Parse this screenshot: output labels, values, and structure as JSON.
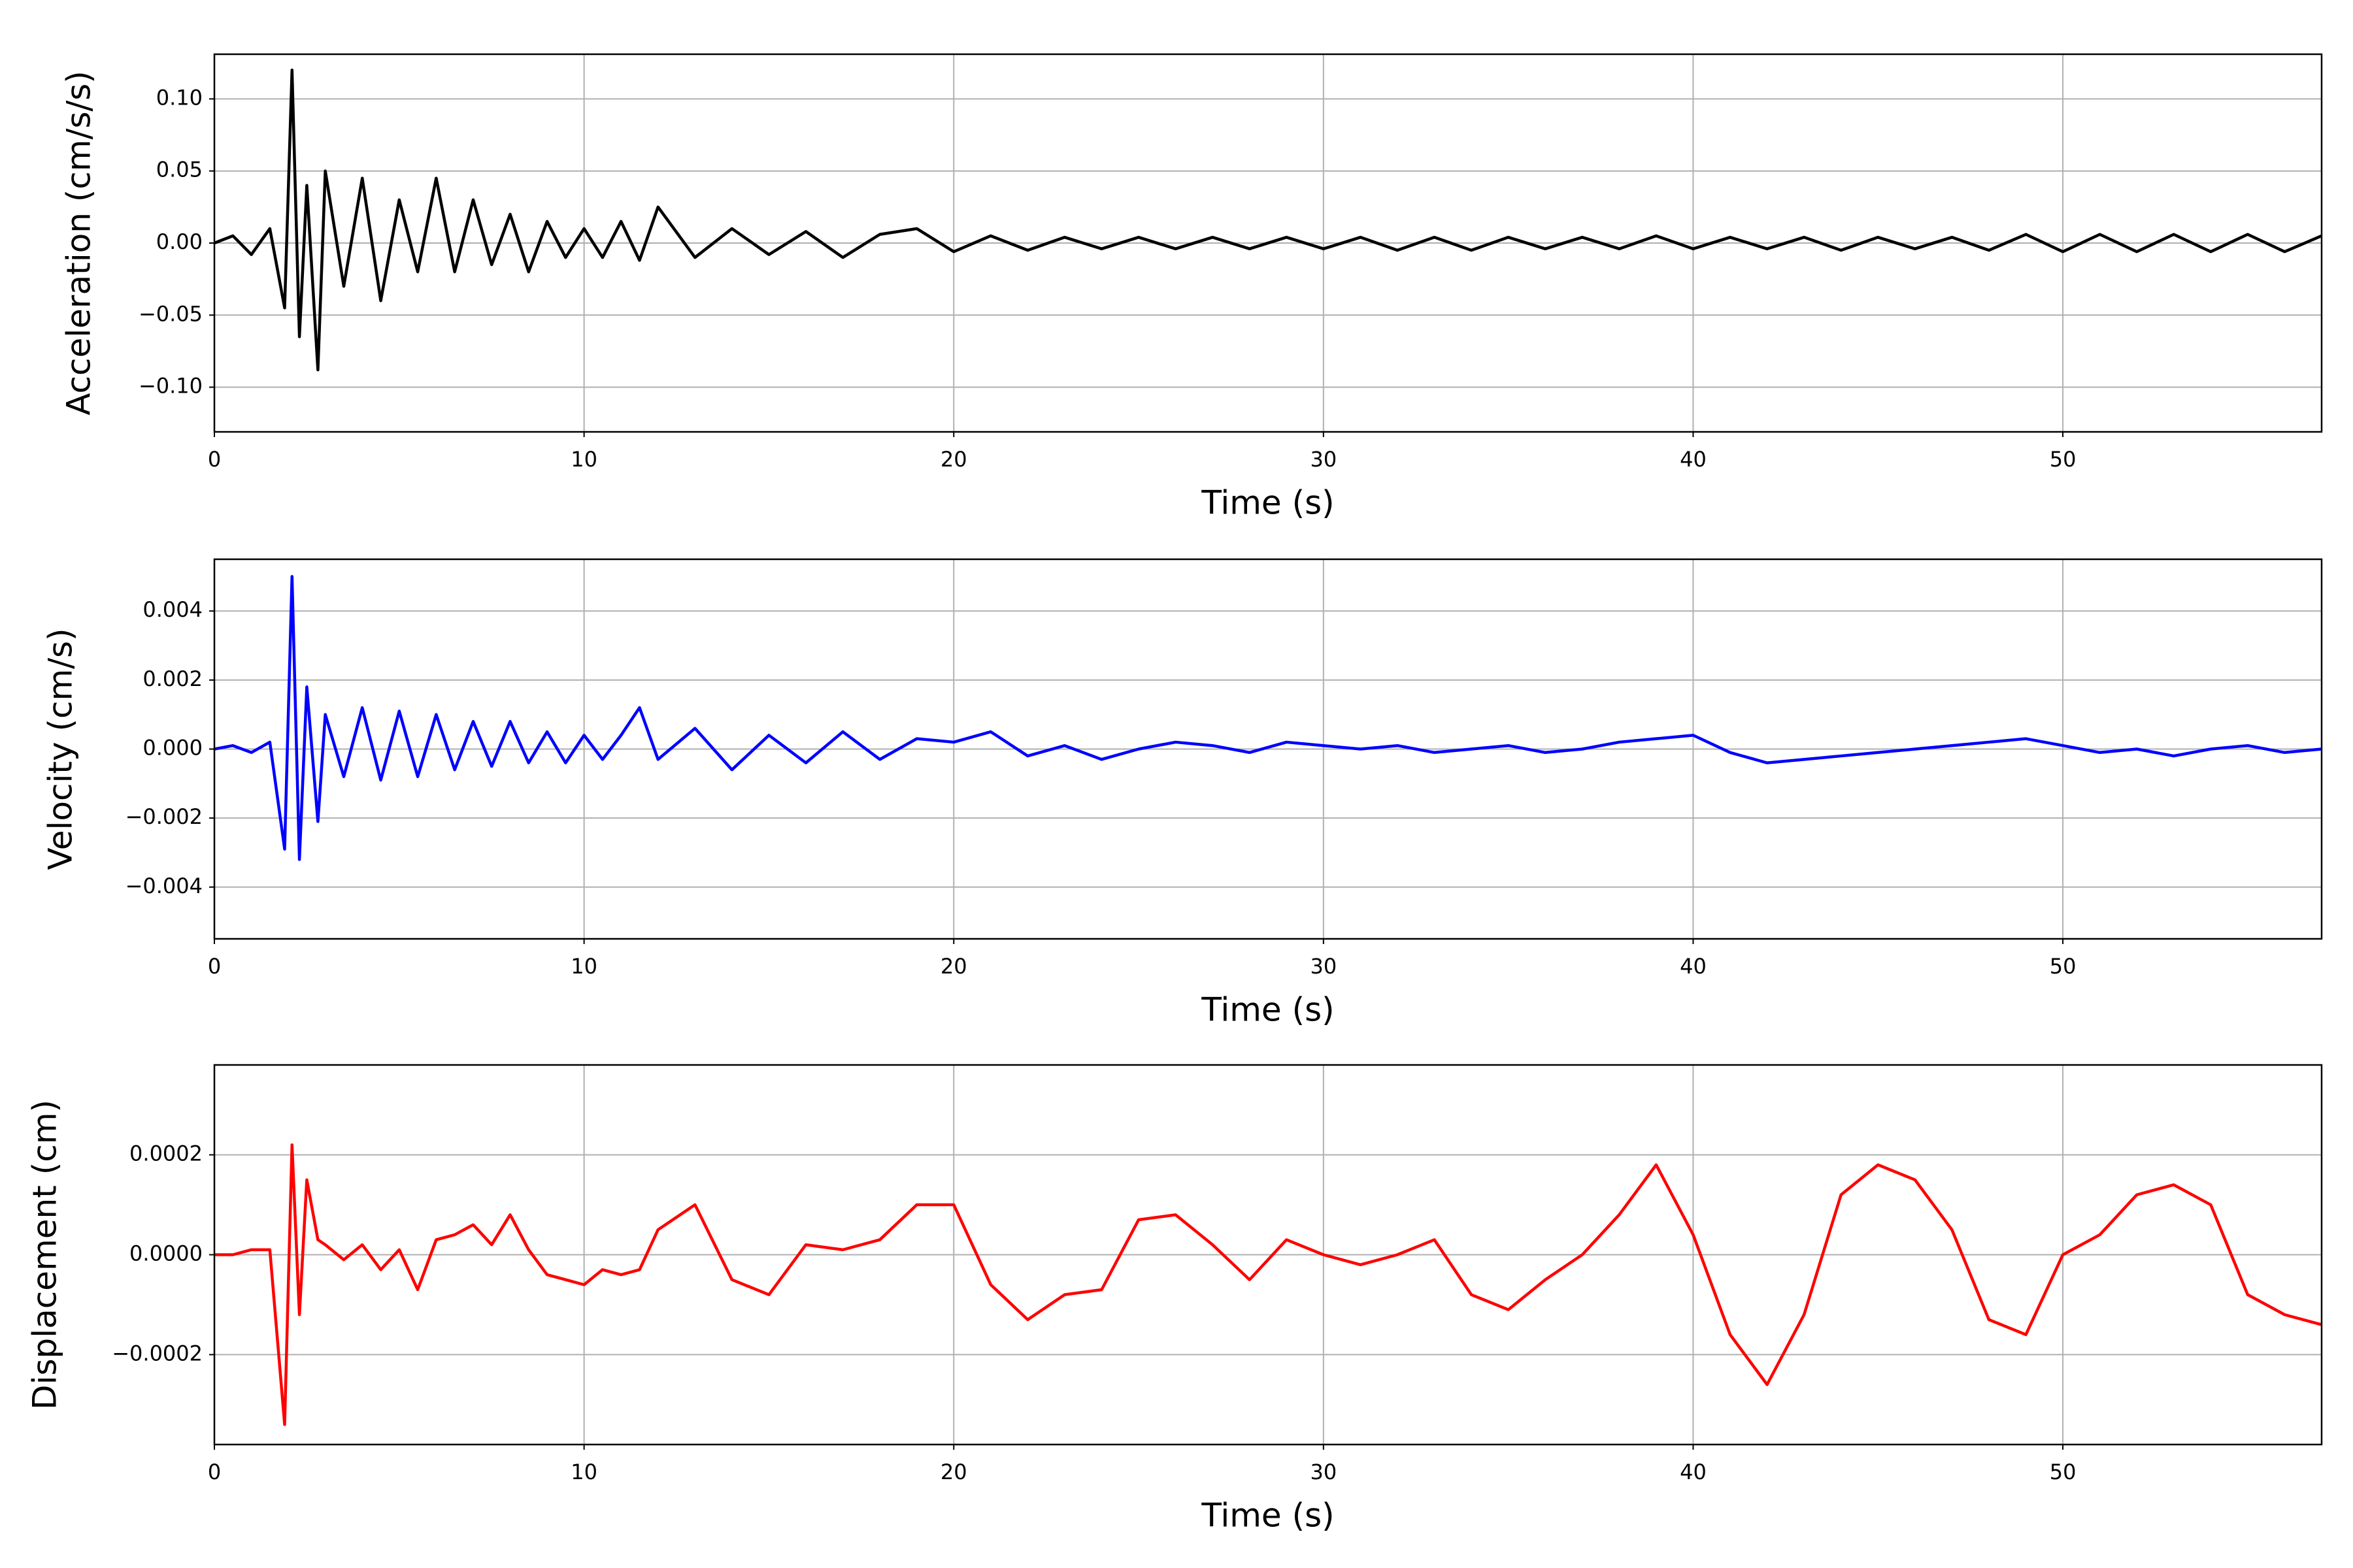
{
  "chart_data": [
    {
      "type": "line",
      "xlabel": "Time (s)",
      "ylabel": "Acceleration (cm/s/s)",
      "x": [
        0,
        0.5,
        1,
        1.5,
        1.9,
        2.1,
        2.3,
        2.5,
        2.8,
        3,
        3.5,
        4,
        4.5,
        5,
        5.5,
        6,
        6.5,
        7,
        7.5,
        8,
        8.5,
        9,
        9.5,
        10,
        10.5,
        11,
        11.5,
        12,
        13,
        14,
        15,
        16,
        17,
        18,
        19,
        20,
        21,
        22,
        23,
        24,
        25,
        26,
        27,
        28,
        29,
        30,
        31,
        32,
        33,
        34,
        35,
        36,
        37,
        38,
        39,
        40,
        41,
        42,
        43,
        44,
        45,
        46,
        47,
        48,
        49,
        50,
        51,
        52,
        53,
        54,
        55,
        56,
        57
      ],
      "series": [
        {
          "color": "#000000",
          "values": [
            0,
            0.005,
            -0.008,
            0.01,
            -0.045,
            0.12,
            -0.065,
            0.04,
            -0.088,
            0.05,
            -0.03,
            0.045,
            -0.04,
            0.03,
            -0.02,
            0.045,
            -0.02,
            0.03,
            -0.015,
            0.02,
            -0.02,
            0.015,
            -0.01,
            0.01,
            -0.01,
            0.015,
            -0.012,
            0.025,
            -0.01,
            0.01,
            -0.008,
            0.008,
            -0.01,
            0.006,
            0.01,
            -0.006,
            0.005,
            -0.005,
            0.004,
            -0.004,
            0.004,
            -0.004,
            0.004,
            -0.004,
            0.004,
            -0.004,
            0.004,
            -0.005,
            0.004,
            -0.005,
            0.004,
            -0.004,
            0.004,
            -0.004,
            0.005,
            -0.004,
            0.004,
            -0.004,
            0.004,
            -0.005,
            0.004,
            -0.004,
            0.004,
            -0.005,
            0.006,
            -0.006,
            0.006,
            -0.006,
            0.006,
            -0.006,
            0.006,
            -0.006,
            0.005
          ]
        }
      ],
      "xlim": [
        0,
        57
      ],
      "ylim": [
        -0.131,
        0.131
      ],
      "xticks": [
        0,
        10,
        20,
        30,
        40,
        50
      ],
      "yticks": [
        {
          "value": -0.1,
          "label": "−0.10"
        },
        {
          "value": -0.05,
          "label": "−0.05"
        },
        {
          "value": 0,
          "label": "0.00"
        },
        {
          "value": 0.05,
          "label": "0.05"
        },
        {
          "value": 0.1,
          "label": "0.10"
        }
      ],
      "grid": true
    },
    {
      "type": "line",
      "xlabel": "Time (s)",
      "ylabel": "Velocity (cm/s)",
      "x": [
        0,
        0.5,
        1,
        1.5,
        1.9,
        2.1,
        2.3,
        2.5,
        2.8,
        3,
        3.5,
        4,
        4.5,
        5,
        5.5,
        6,
        6.5,
        7,
        7.5,
        8,
        8.5,
        9,
        9.5,
        10,
        10.5,
        11,
        11.5,
        12,
        13,
        14,
        15,
        16,
        17,
        18,
        19,
        20,
        21,
        22,
        23,
        24,
        25,
        26,
        27,
        28,
        29,
        30,
        31,
        32,
        33,
        34,
        35,
        36,
        37,
        38,
        39,
        40,
        41,
        42,
        43,
        44,
        45,
        46,
        47,
        48,
        49,
        50,
        51,
        52,
        53,
        54,
        55,
        56,
        57
      ],
      "series": [
        {
          "color": "#0000ff",
          "values": [
            0,
            0.0001,
            -0.0001,
            0.0002,
            -0.0029,
            0.005,
            -0.0032,
            0.0018,
            -0.0021,
            0.001,
            -0.0008,
            0.0012,
            -0.0009,
            0.0011,
            -0.0008,
            0.001,
            -0.0006,
            0.0008,
            -0.0005,
            0.0008,
            -0.0004,
            0.0005,
            -0.0004,
            0.0004,
            -0.0003,
            0.0004,
            0.0012,
            -0.0003,
            0.0006,
            -0.0006,
            0.0004,
            -0.0004,
            0.0005,
            -0.0003,
            0.0003,
            0.0002,
            0.0005,
            -0.0002,
            0.0001,
            -0.0003,
            0,
            0.0002,
            0.0001,
            -0.0001,
            0.0002,
            0.0001,
            0,
            0.0001,
            -0.0001,
            0,
            0.0001,
            -0.0001,
            0,
            0.0002,
            0.0003,
            0.0004,
            -0.0001,
            -0.0004,
            -0.0003,
            -0.0002,
            -0.0001,
            0,
            0.0001,
            0.0002,
            0.0003,
            0.0001,
            -0.0001,
            0,
            -0.0002,
            0,
            0.0001,
            -0.0001,
            0
          ]
        }
      ],
      "xlim": [
        0,
        57
      ],
      "ylim": [
        -0.0055,
        0.0055
      ],
      "xticks": [
        0,
        10,
        20,
        30,
        40,
        50
      ],
      "yticks": [
        {
          "value": -0.004,
          "label": "−0.004"
        },
        {
          "value": -0.002,
          "label": "−0.002"
        },
        {
          "value": 0,
          "label": "0.000"
        },
        0.002,
        0.004
      ],
      "grid": true
    },
    {
      "type": "line",
      "xlabel": "Time (s)",
      "ylabel": "Displacement (cm)",
      "x": [
        0,
        0.5,
        1,
        1.5,
        1.9,
        2.1,
        2.3,
        2.5,
        2.8,
        3,
        3.5,
        4,
        4.5,
        5,
        5.5,
        6,
        6.5,
        7,
        7.5,
        8,
        8.5,
        9,
        9.5,
        10,
        10.5,
        11,
        11.5,
        12,
        13,
        14,
        15,
        16,
        17,
        18,
        19,
        20,
        21,
        22,
        23,
        24,
        25,
        26,
        27,
        28,
        29,
        30,
        31,
        32,
        33,
        34,
        35,
        36,
        37,
        38,
        39,
        40,
        41,
        42,
        43,
        44,
        45,
        46,
        47,
        48,
        49,
        50,
        51,
        52,
        53,
        54,
        55,
        56,
        57
      ],
      "series": [
        {
          "color": "#ff0000",
          "values": [
            0,
            0,
            1e-05,
            1e-05,
            -0.00034,
            0.00022,
            -0.00012,
            0.00015,
            3e-05,
            2e-05,
            -1e-05,
            2e-05,
            -3e-05,
            1e-05,
            -7e-05,
            3e-05,
            4e-05,
            6e-05,
            2e-05,
            8e-05,
            1e-05,
            -4e-05,
            -5e-05,
            -6e-05,
            -3e-05,
            -4e-05,
            -3e-05,
            5e-05,
            0.0001,
            -5e-05,
            -8e-05,
            2e-05,
            1e-05,
            3e-05,
            0.0001,
            0.0001,
            -6e-05,
            -0.00013,
            -8e-05,
            -7e-05,
            7e-05,
            8e-05,
            2e-05,
            -5e-05,
            3e-05,
            0,
            -2e-05,
            0,
            3e-05,
            -8e-05,
            -0.00011,
            -5e-05,
            0,
            8e-05,
            0.00018,
            4e-05,
            -0.00016,
            -0.00026,
            -0.00012,
            0.00012,
            0.00018,
            0.00015,
            5e-05,
            -0.00013,
            -0.00016,
            0,
            4e-05,
            0.00012,
            0.00014,
            0.0001,
            -8e-05,
            -0.00012,
            -0.00014
          ]
        }
      ],
      "xlim": [
        0,
        57
      ],
      "ylim": [
        -0.00038,
        0.00038
      ],
      "xticks": [
        0,
        10,
        20,
        30,
        40,
        50
      ],
      "yticks": [
        {
          "value": -0.0002,
          "label": "−0.0002"
        },
        {
          "value": 0,
          "label": "0.0000"
        },
        {
          "value": 0.0002,
          "label": "0.0002"
        }
      ],
      "grid": true
    }
  ]
}
